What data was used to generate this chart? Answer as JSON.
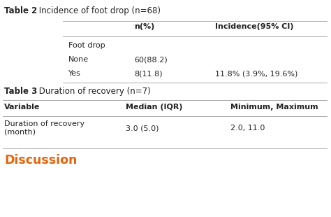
{
  "table2_title_bold": "Table 2",
  "table2_title_normal": " Incidence of foot drop (n=68)",
  "table2_col1_header": "n(%)",
  "table2_col2_header": "Incidence(95% CI)",
  "table2_rows": [
    [
      "Foot drop",
      "",
      ""
    ],
    [
      "None",
      "60(88.2)",
      ""
    ],
    [
      "Yes",
      "8(11.8)",
      "11.8% (3.9%, 19.6%)"
    ]
  ],
  "table3_title_bold": "Table 3",
  "table3_title_normal": " Duration of recovery (n=7)",
  "table3_headers": [
    "Variable",
    "Median (IQR)",
    "Minimum, Maximum"
  ],
  "table3_rows": [
    [
      "Duration of recovery\n(month)",
      "3.0 (5.0)",
      "2.0, 11.0"
    ]
  ],
  "discussion_text": "Discussion",
  "discussion_color": "#E8630A",
  "bg_color": "#ffffff",
  "text_color": "#222222",
  "line_color": "#aaaaaa",
  "font_size": 8.0,
  "title_font_size": 8.5,
  "discussion_font_size": 12.5,
  "fig_width": 4.74,
  "fig_height": 3.1,
  "dpi": 100
}
